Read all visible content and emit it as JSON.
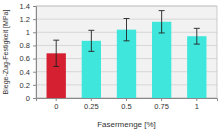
{
  "chart_data": {
    "type": "bar",
    "x_label": "Fasermenge [%]",
    "y_label": "Biege-Zug-Festigkeit [MPa]",
    "categories": [
      "0",
      "0.25",
      "0.5",
      "0.75",
      "1"
    ],
    "values": [
      0.68,
      0.87,
      1.04,
      1.16,
      0.94
    ],
    "errors": [
      0.2,
      0.16,
      0.17,
      0.17,
      0.12
    ],
    "colors": [
      "#d42030",
      "#3ee6dc",
      "#3ee6dc",
      "#3ee6dc",
      "#3ee6dc"
    ],
    "ylim": [
      0,
      1.4
    ],
    "yticks": [
      0,
      0.2,
      0.4,
      0.6,
      0.8,
      1,
      1.2,
      1.4
    ],
    "grid": true
  }
}
